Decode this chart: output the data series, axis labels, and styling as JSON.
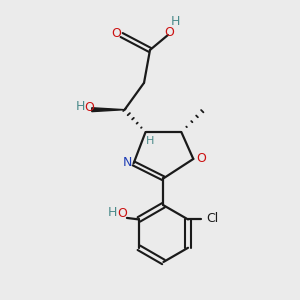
{
  "bg_color": "#ebebeb",
  "bond_color": "#1a1a1a",
  "N_color": "#1e3db5",
  "O_color": "#cc1111",
  "OH_teal": "#4a8a8a",
  "figsize": [
    3.0,
    3.0
  ],
  "dpi": 100,
  "xlim": [
    0,
    10
  ],
  "ylim": [
    0,
    10
  ]
}
